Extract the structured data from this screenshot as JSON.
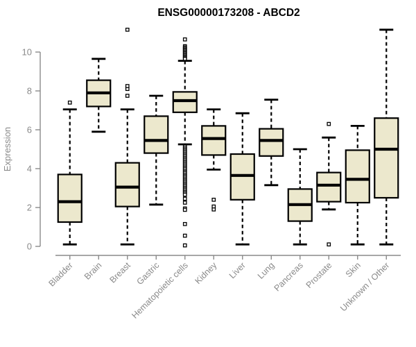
{
  "chart_data": {
    "type": "boxplot",
    "title": "ENSG00000173208 - ABCD2",
    "xlabel": "",
    "ylabel": "Expression",
    "ylim": [
      0,
      11.2
    ],
    "yticks": [
      0,
      2,
      4,
      6,
      8,
      10
    ],
    "grid": false,
    "legend": "none",
    "colors": {
      "box_fill": "#ece8cd",
      "box_stroke": "#000000",
      "whisker": "#000000",
      "axis": "#8a8a8a",
      "title": "#000000"
    },
    "categories": [
      "Bladder",
      "Brain",
      "Breast",
      "Gastric",
      "Hematopoietic cells",
      "Kidney",
      "Liver",
      "Lung",
      "Pancreas",
      "Prostate",
      "Skin",
      "Unknown / Other"
    ],
    "series": [
      {
        "name": "Bladder",
        "whisker_low": 0.1,
        "q1": 1.25,
        "median": 2.3,
        "q3": 3.7,
        "whisker_high": 7.05,
        "outliers": [
          7.4
        ]
      },
      {
        "name": "Brain",
        "whisker_low": 5.9,
        "q1": 7.2,
        "median": 7.9,
        "q3": 8.55,
        "whisker_high": 9.65,
        "outliers": []
      },
      {
        "name": "Breast",
        "whisker_low": 0.1,
        "q1": 2.05,
        "median": 3.05,
        "q3": 4.3,
        "whisker_high": 7.05,
        "outliers": [
          7.75,
          8.1,
          8.25,
          11.15
        ]
      },
      {
        "name": "Gastric",
        "whisker_low": 2.15,
        "q1": 4.8,
        "median": 5.45,
        "q3": 6.7,
        "whisker_high": 7.75,
        "outliers": []
      },
      {
        "name": "Hematopoietic cells",
        "whisker_low": 5.25,
        "q1": 6.9,
        "median": 7.5,
        "q3": 7.95,
        "whisker_high": 9.55,
        "outliers": [
          10.65,
          10.3,
          10.24,
          10.18,
          10.12,
          10.06,
          10.0,
          9.94,
          9.88,
          9.82,
          9.76,
          9.7,
          9.65,
          5.15,
          5.08,
          5.0,
          4.93,
          4.86,
          4.78,
          4.71,
          4.64,
          4.56,
          4.49,
          4.42,
          4.34,
          4.27,
          4.2,
          4.12,
          4.05,
          3.98,
          3.9,
          3.83,
          3.76,
          3.68,
          3.61,
          3.54,
          3.46,
          3.39,
          3.32,
          3.24,
          3.17,
          3.1,
          3.02,
          2.95,
          2.88,
          2.8,
          2.73,
          2.66,
          2.45,
          2.25,
          1.95,
          1.88,
          1.15,
          0.55,
          0.05
        ]
      },
      {
        "name": "Kidney",
        "whisker_low": 3.95,
        "q1": 4.7,
        "median": 5.55,
        "q3": 6.2,
        "whisker_high": 7.05,
        "outliers": [
          2.4,
          2.05,
          1.9
        ]
      },
      {
        "name": "Liver",
        "whisker_low": 0.1,
        "q1": 2.4,
        "median": 3.65,
        "q3": 4.75,
        "whisker_high": 6.85,
        "outliers": []
      },
      {
        "name": "Lung",
        "whisker_low": 3.15,
        "q1": 4.65,
        "median": 5.45,
        "q3": 6.05,
        "whisker_high": 7.55,
        "outliers": []
      },
      {
        "name": "Pancreas",
        "whisker_low": 0.1,
        "q1": 1.3,
        "median": 2.15,
        "q3": 2.95,
        "whisker_high": 5.0,
        "outliers": []
      },
      {
        "name": "Prostate",
        "whisker_low": 1.9,
        "q1": 2.3,
        "median": 3.15,
        "q3": 3.8,
        "whisker_high": 5.6,
        "outliers": [
          6.3,
          0.1
        ]
      },
      {
        "name": "Skin",
        "whisker_low": 0.1,
        "q1": 2.25,
        "median": 3.45,
        "q3": 4.95,
        "whisker_high": 6.2,
        "outliers": []
      },
      {
        "name": "Unknown / Other",
        "whisker_low": 0.1,
        "q1": 2.5,
        "median": 5.0,
        "q3": 6.6,
        "whisker_high": 11.15,
        "outliers": []
      }
    ]
  }
}
